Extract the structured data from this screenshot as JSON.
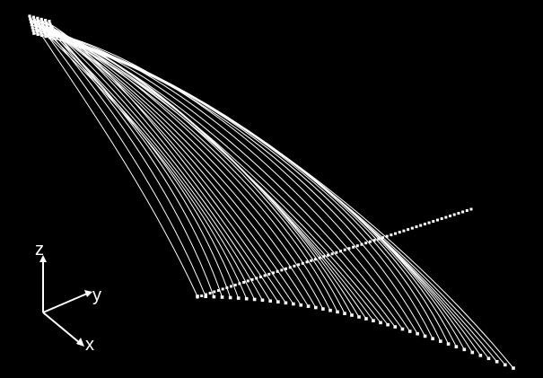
{
  "figure": {
    "background": "#000000",
    "stroke_color": "#ffffff",
    "axes": {
      "z_label": "z",
      "y_label": "y",
      "x_label": "x"
    },
    "strand_count": 42,
    "has_top_left_bundle": true,
    "has_bottom_ribbon": true
  }
}
